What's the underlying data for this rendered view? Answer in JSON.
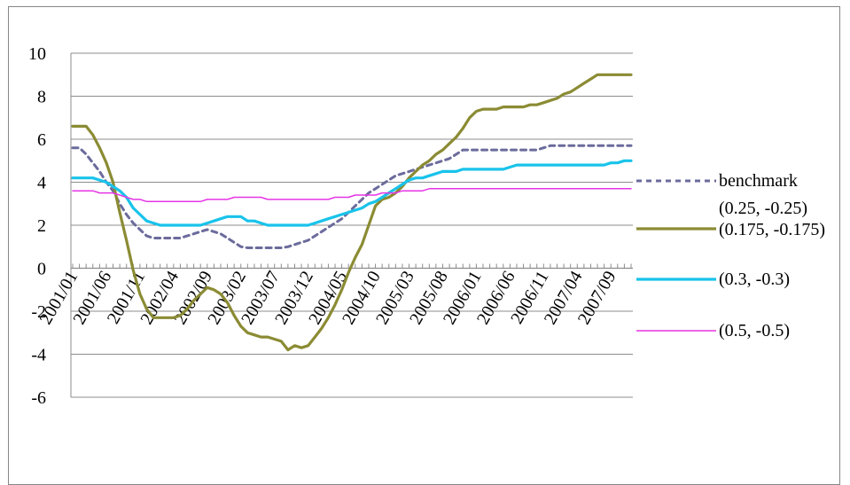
{
  "chart_data": {
    "type": "line",
    "title": "",
    "xlabel": "",
    "ylabel": "",
    "ylim": [
      -6,
      10
    ],
    "yticks": [
      -6,
      -4,
      -2,
      0,
      2,
      4,
      6,
      8,
      10
    ],
    "grid": true,
    "legend_position": "right",
    "x_tick_labels": [
      "2001/01",
      "2001/06",
      "2001/11",
      "2002/04",
      "2002/09",
      "2003/02",
      "2003/07",
      "2003/12",
      "2004/05",
      "2004/10",
      "2005/03",
      "2005/08",
      "2006/01",
      "2006/06",
      "2006/11",
      "2007/04",
      "2007/09"
    ],
    "x": [
      "2001/01",
      "2001/02",
      "2001/03",
      "2001/04",
      "2001/05",
      "2001/06",
      "2001/07",
      "2001/08",
      "2001/09",
      "2001/10",
      "2001/11",
      "2001/12",
      "2002/01",
      "2002/02",
      "2002/03",
      "2002/04",
      "2002/05",
      "2002/06",
      "2002/07",
      "2002/08",
      "2002/09",
      "2002/10",
      "2002/11",
      "2002/12",
      "2003/01",
      "2003/02",
      "2003/03",
      "2003/04",
      "2003/05",
      "2003/06",
      "2003/07",
      "2003/08",
      "2003/09",
      "2003/10",
      "2003/11",
      "2003/12",
      "2004/01",
      "2004/02",
      "2004/03",
      "2004/04",
      "2004/05",
      "2004/06",
      "2004/07",
      "2004/08",
      "2004/09",
      "2004/10",
      "2004/11",
      "2004/12",
      "2005/01",
      "2005/02",
      "2005/03",
      "2005/04",
      "2005/05",
      "2005/06",
      "2005/07",
      "2005/08",
      "2005/09",
      "2005/10",
      "2005/11",
      "2005/12",
      "2006/01",
      "2006/02",
      "2006/03",
      "2006/04",
      "2006/05",
      "2006/06",
      "2006/07",
      "2006/08",
      "2006/09",
      "2006/10",
      "2006/11",
      "2006/12",
      "2007/01",
      "2007/02",
      "2007/03",
      "2007/04",
      "2007/05",
      "2007/06",
      "2007/07",
      "2007/08",
      "2007/09",
      "2007/10",
      "2007/11",
      "2007/12"
    ],
    "series": [
      {
        "name": "benchmark",
        "color": "#6b6b9c",
        "style": "dashed",
        "values": [
          5.6,
          5.6,
          5.3,
          4.9,
          4.5,
          4.0,
          3.6,
          3.0,
          2.5,
          2.1,
          1.8,
          1.5,
          1.4,
          1.4,
          1.4,
          1.4,
          1.4,
          1.5,
          1.6,
          1.7,
          1.8,
          1.7,
          1.6,
          1.4,
          1.2,
          1.0,
          0.95,
          0.95,
          0.95,
          0.95,
          0.95,
          0.95,
          1.0,
          1.1,
          1.2,
          1.3,
          1.5,
          1.7,
          1.9,
          2.1,
          2.3,
          2.6,
          2.9,
          3.2,
          3.5,
          3.7,
          3.9,
          4.1,
          4.3,
          4.4,
          4.5,
          4.6,
          4.7,
          4.8,
          4.9,
          5.0,
          5.1,
          5.3,
          5.5,
          5.5,
          5.5,
          5.5,
          5.5,
          5.5,
          5.5,
          5.5,
          5.5,
          5.5,
          5.5,
          5.5,
          5.6,
          5.7,
          5.7,
          5.7,
          5.7,
          5.7,
          5.7,
          5.7,
          5.7,
          5.7,
          5.7,
          5.7,
          5.7,
          5.7
        ]
      },
      {
        "name": "(0.175, -0.175)",
        "color": "#8b8b34",
        "style": "solid",
        "values": [
          6.6,
          6.6,
          6.6,
          6.2,
          5.6,
          4.9,
          4.0,
          2.6,
          1.3,
          -0.1,
          -1.2,
          -1.9,
          -2.3,
          -2.3,
          -2.3,
          -2.3,
          -2.2,
          -1.9,
          -1.5,
          -1.2,
          -0.9,
          -1.0,
          -1.2,
          -1.6,
          -2.2,
          -2.7,
          -3.0,
          -3.1,
          -3.2,
          -3.2,
          -3.3,
          -3.4,
          -3.8,
          -3.6,
          -3.7,
          -3.6,
          -3.2,
          -2.8,
          -2.3,
          -1.7,
          -1.0,
          -0.2,
          0.5,
          1.1,
          2.0,
          2.9,
          3.2,
          3.3,
          3.5,
          3.8,
          4.2,
          4.5,
          4.8,
          5.0,
          5.3,
          5.5,
          5.8,
          6.1,
          6.5,
          7.0,
          7.3,
          7.4,
          7.4,
          7.4,
          7.5,
          7.5,
          7.5,
          7.5,
          7.6,
          7.6,
          7.7,
          7.8,
          7.9,
          8.1,
          8.2,
          8.4,
          8.6,
          8.8,
          9.0,
          9.0,
          9.0,
          9.0,
          9.0,
          9.0
        ]
      },
      {
        "name": "(0.3, -0.3)",
        "color": "#19c3ea",
        "style": "solid",
        "values": [
          4.2,
          4.2,
          4.2,
          4.2,
          4.1,
          4.0,
          3.8,
          3.6,
          3.3,
          2.8,
          2.5,
          2.2,
          2.1,
          2.0,
          2.0,
          2.0,
          2.0,
          2.0,
          2.0,
          2.0,
          2.1,
          2.2,
          2.3,
          2.4,
          2.4,
          2.4,
          2.2,
          2.2,
          2.1,
          2.0,
          2.0,
          2.0,
          2.0,
          2.0,
          2.0,
          2.0,
          2.1,
          2.2,
          2.3,
          2.4,
          2.5,
          2.6,
          2.7,
          2.8,
          3.0,
          3.1,
          3.3,
          3.5,
          3.7,
          3.9,
          4.1,
          4.2,
          4.2,
          4.3,
          4.4,
          4.5,
          4.5,
          4.5,
          4.6,
          4.6,
          4.6,
          4.6,
          4.6,
          4.6,
          4.6,
          4.7,
          4.8,
          4.8,
          4.8,
          4.8,
          4.8,
          4.8,
          4.8,
          4.8,
          4.8,
          4.8,
          4.8,
          4.8,
          4.8,
          4.8,
          4.9,
          4.9,
          5.0,
          5.0
        ]
      },
      {
        "name": "(0.5, -0.5)",
        "color": "#e635e6",
        "style": "solid",
        "values": [
          3.6,
          3.6,
          3.6,
          3.6,
          3.5,
          3.5,
          3.5,
          3.4,
          3.3,
          3.2,
          3.2,
          3.1,
          3.1,
          3.1,
          3.1,
          3.1,
          3.1,
          3.1,
          3.1,
          3.1,
          3.2,
          3.2,
          3.2,
          3.2,
          3.3,
          3.3,
          3.3,
          3.3,
          3.3,
          3.2,
          3.2,
          3.2,
          3.2,
          3.2,
          3.2,
          3.2,
          3.2,
          3.2,
          3.2,
          3.3,
          3.3,
          3.3,
          3.4,
          3.4,
          3.4,
          3.4,
          3.5,
          3.5,
          3.5,
          3.6,
          3.6,
          3.6,
          3.6,
          3.7,
          3.7,
          3.7,
          3.7,
          3.7,
          3.7,
          3.7,
          3.7,
          3.7,
          3.7,
          3.7,
          3.7,
          3.7,
          3.7,
          3.7,
          3.7,
          3.7,
          3.7,
          3.7,
          3.7,
          3.7,
          3.7,
          3.7,
          3.7,
          3.7,
          3.7,
          3.7,
          3.7,
          3.7,
          3.7,
          3.7
        ]
      }
    ],
    "legend_entries": [
      {
        "label": "benchmark",
        "color": "#6b6b9c",
        "style": "dashed"
      },
      {
        "label": "(0.25, -0.25)",
        "color": "",
        "style": "none"
      },
      {
        "label": "(0.175, -0.175)",
        "color": "#8b8b34",
        "style": "solid"
      },
      {
        "label": "(0.3, -0.3)",
        "color": "#19c3ea",
        "style": "solid"
      },
      {
        "label": "(0.5, -0.5)",
        "color": "#e635e6",
        "style": "solid"
      }
    ]
  }
}
